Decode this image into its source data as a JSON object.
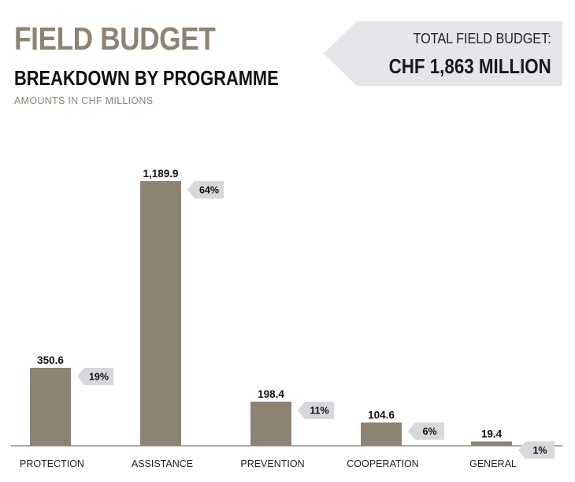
{
  "header": {
    "title": "FIELD BUDGET",
    "subtitle": "BREAKDOWN BY PROGRAMME",
    "units": "AMOUNTS IN CHF MILLIONS"
  },
  "total": {
    "label": "TOTAL FIELD BUDGET:",
    "value": "CHF 1,863 MILLION"
  },
  "colors": {
    "accent": "#8e8273",
    "bar": "#8e8273",
    "badge": "#d6d8db",
    "axis": "#555555"
  },
  "chart_data": {
    "type": "bar",
    "categories": [
      "PROTECTION",
      "ASSISTANCE",
      "PREVENTION",
      "COOPERATION",
      "GENERAL"
    ],
    "values": [
      350.6,
      1189.9,
      198.4,
      104.6,
      19.4
    ],
    "value_labels": [
      "350.6",
      "1,189.9",
      "198.4",
      "104.6",
      "19.4"
    ],
    "share_labels": [
      "19%",
      "64%",
      "11%",
      "6%",
      "1%"
    ],
    "ylim": [
      0,
      1189.9
    ],
    "grid": false,
    "legend": "none"
  }
}
